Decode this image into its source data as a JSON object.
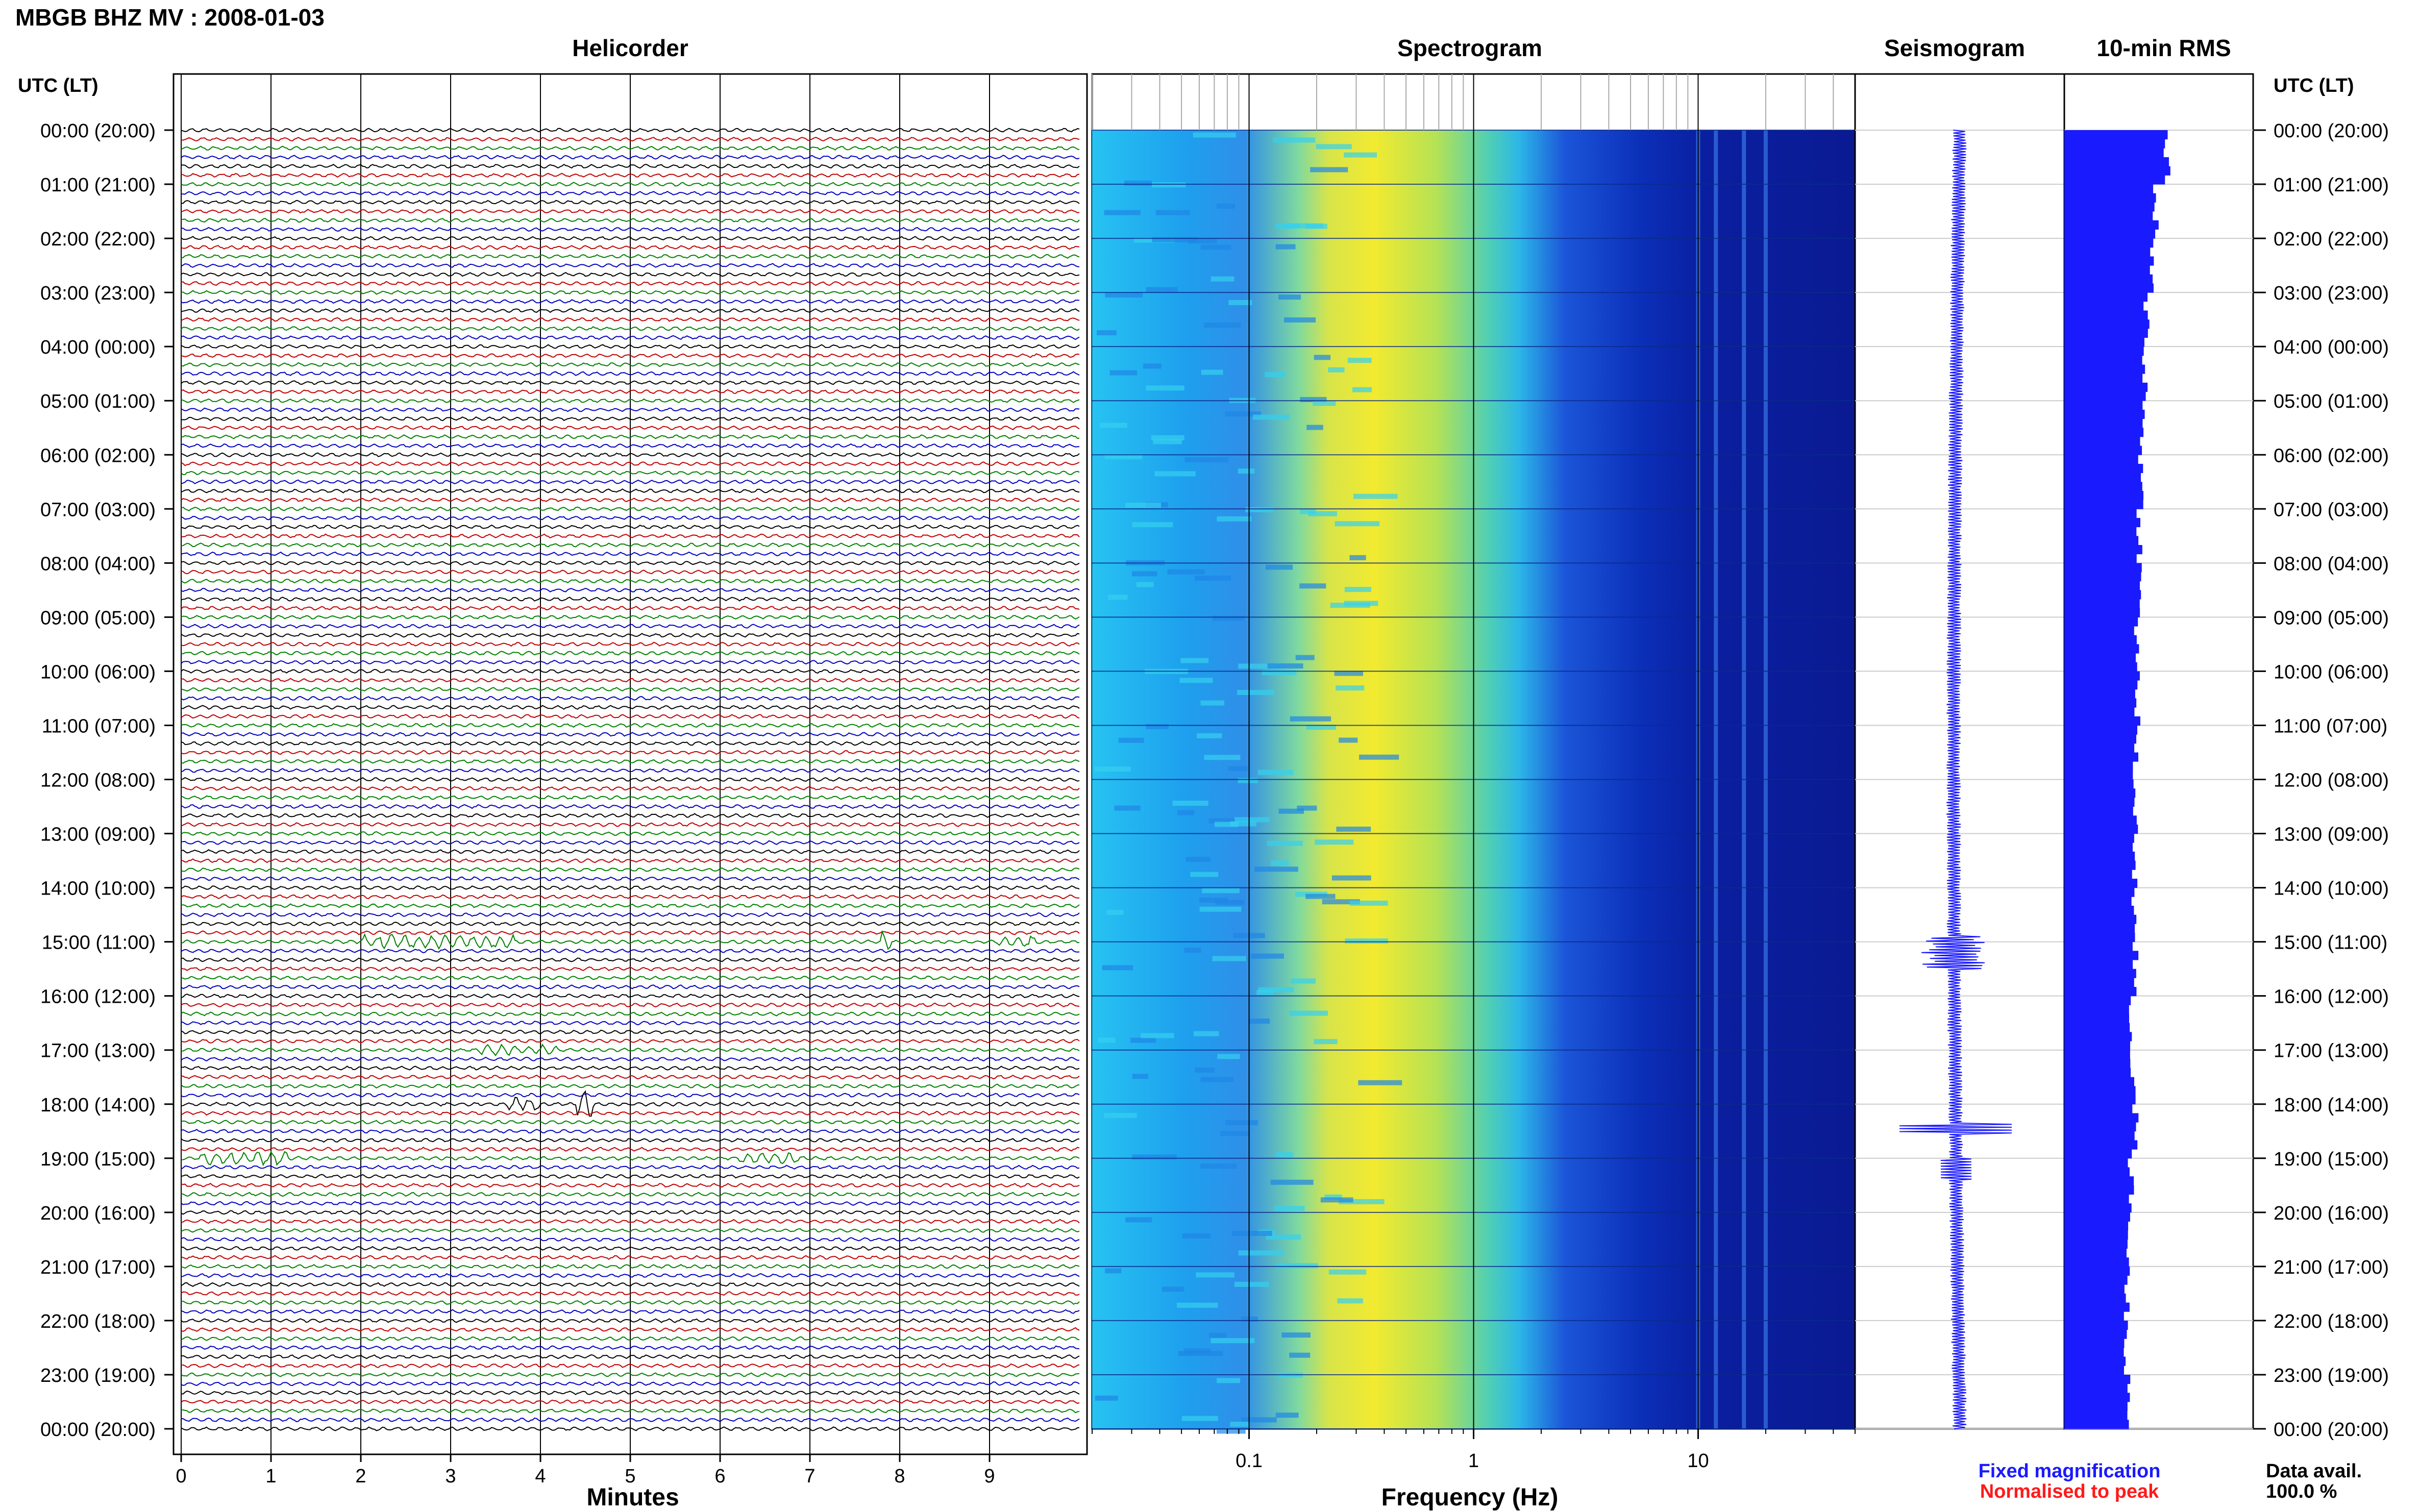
{
  "header": {
    "station_title": "MBGB BHZ MV : 2008-01-03",
    "utc_label_left": "UTC (LT)",
    "utc_label_right": "UTC (LT)"
  },
  "panels": {
    "helicorder_title": "Helicorder",
    "spectrogram_title": "Spectrogram",
    "seismogram_title": "Seismogram",
    "rms_title": "10-min RMS"
  },
  "axes": {
    "minutes_label": "Minutes",
    "frequency_label": "Frequency (Hz)"
  },
  "legend": {
    "fixed": "Fixed magnification",
    "normalised": "Normalised to peak",
    "fixed_color": "#1a1aff",
    "normalised_color": "#ff1a1a"
  },
  "availability": {
    "label": "Data avail.",
    "value": "100.0 %"
  },
  "chart_data": {
    "type": "helicorder",
    "time_labels": [
      "00:00 (20:00)",
      "01:00 (21:00)",
      "02:00 (22:00)",
      "03:00 (23:00)",
      "04:00 (00:00)",
      "05:00 (01:00)",
      "06:00 (02:00)",
      "07:00 (03:00)",
      "08:00 (04:00)",
      "09:00 (05:00)",
      "10:00 (06:00)",
      "11:00 (07:00)",
      "12:00 (08:00)",
      "13:00 (09:00)",
      "14:00 (10:00)",
      "15:00 (11:00)",
      "16:00 (12:00)",
      "17:00 (13:00)",
      "18:00 (14:00)",
      "19:00 (15:00)",
      "20:00 (16:00)",
      "21:00 (17:00)",
      "22:00 (18:00)",
      "23:00 (19:00)",
      "00:00 (20:00)"
    ],
    "minute_ticks": [
      "0",
      "1",
      "2",
      "3",
      "4",
      "5",
      "6",
      "7",
      "8",
      "9"
    ],
    "frequency_ticks": [
      "0.1",
      "1",
      "10"
    ],
    "frequency_scale": "log",
    "frequency_range_hz": [
      0.02,
      50
    ],
    "trace_colors": [
      "#000000",
      "#c00000",
      "#008000",
      "#0000c0"
    ],
    "traces_per_hour": 6,
    "events": [
      {
        "hour": 15,
        "minute_start": 2.0,
        "minute_end": 3.7,
        "amplitude": 4
      },
      {
        "hour": 15,
        "minute_start": 7.8,
        "minute_end": 7.9,
        "amplitude": 6
      },
      {
        "hour": 15,
        "minute_start": 9.1,
        "minute_end": 9.5,
        "amplitude": 4
      },
      {
        "hour": 17,
        "minute_start": 3.3,
        "minute_end": 4.2,
        "amplitude": 3
      },
      {
        "hour": 18,
        "minute_start": 3.6,
        "minute_end": 4.0,
        "amplitude": 4
      },
      {
        "hour": 18,
        "minute_start": 4.4,
        "minute_end": 4.6,
        "amplitude": 8
      },
      {
        "hour": 19,
        "minute_start": 6.2,
        "minute_end": 6.9,
        "amplitude": 3
      },
      {
        "hour": 19,
        "minute_start": 0.2,
        "minute_end": 1.2,
        "amplitude": 4
      }
    ],
    "rms_relative": [
      1.0,
      0.9,
      0.85,
      0.82,
      0.8,
      0.78,
      0.76,
      0.75,
      0.74,
      0.72,
      0.72,
      0.7,
      0.7,
      0.7,
      0.68,
      0.7,
      0.66,
      0.68,
      0.7,
      0.66,
      0.64,
      0.62,
      0.62,
      0.64
    ]
  }
}
